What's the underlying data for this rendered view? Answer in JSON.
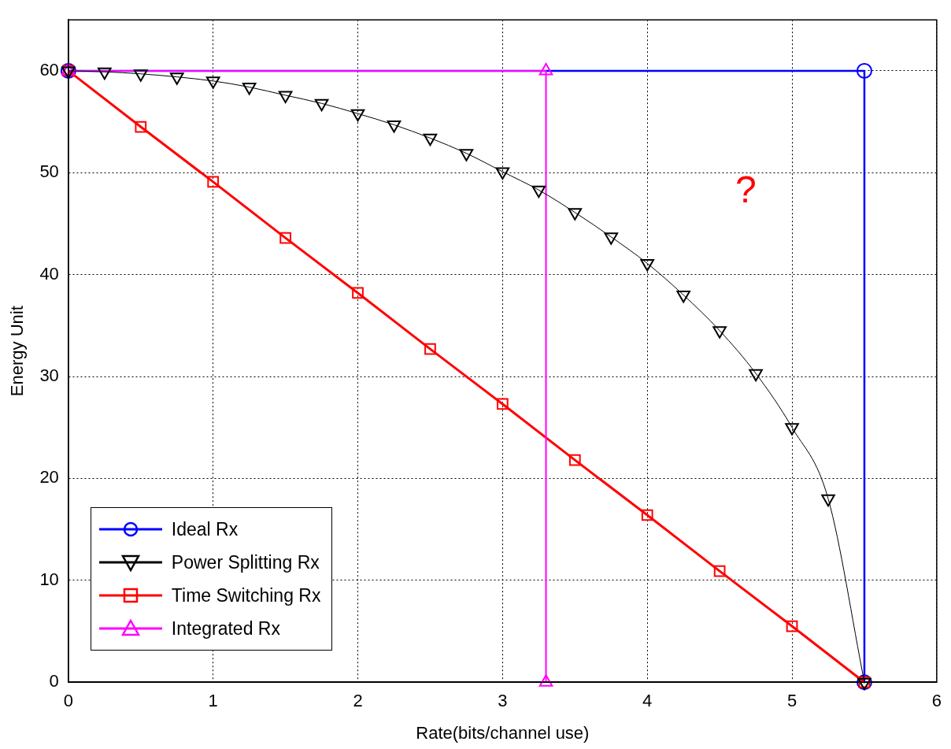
{
  "chart_data": {
    "type": "line",
    "xlabel": "Rate(bits/channel use)",
    "ylabel": "Energy Unit",
    "xlim": [
      0,
      6
    ],
    "xticks": [
      0,
      1,
      2,
      3,
      4,
      5,
      6
    ],
    "ylim": [
      0,
      65
    ],
    "yticks": [
      0,
      10,
      20,
      30,
      40,
      50,
      60
    ],
    "grid": true,
    "legend": "bottom left",
    "line_style": "solid",
    "annotations": [
      "?"
    ],
    "series": [
      {
        "name": "Ideal Rx",
        "color": "#0000ff",
        "marker": "circle",
        "x": [
          0,
          5.5,
          5.5
        ],
        "values": [
          60,
          60,
          0
        ]
      },
      {
        "name": "Power Splitting Rx",
        "color": "#000000",
        "marker": "triangle-down",
        "x": [
          0,
          0.25,
          0.5,
          0.75,
          1,
          1.25,
          1.5,
          1.75,
          2,
          2.25,
          2.5,
          2.75,
          3,
          3.25,
          3.5,
          3.75,
          4,
          4.25,
          4.5,
          4.75,
          5,
          5.25,
          5.5
        ],
        "values": [
          60,
          59.9,
          59.7,
          59.4,
          59,
          58.4,
          57.6,
          56.8,
          55.8,
          54.7,
          53.4,
          51.9,
          50.1,
          48.3,
          46.1,
          43.7,
          41.1,
          38,
          34.5,
          30.3,
          25,
          18,
          0
        ]
      },
      {
        "name": "Time Switching Rx",
        "color": "#ff0000",
        "marker": "square",
        "x": [
          0,
          0.5,
          1,
          1.5,
          2,
          2.5,
          3,
          3.5,
          4,
          4.5,
          5,
          5.5
        ],
        "values": [
          60,
          54.5,
          49.1,
          43.6,
          38.2,
          32.7,
          27.3,
          21.8,
          16.4,
          10.9,
          5.5,
          0
        ]
      },
      {
        "name": "Integrated Rx",
        "color": "#ff00ff",
        "marker": "triangle",
        "x": [
          0,
          3.3,
          3.3
        ],
        "values": [
          60,
          60,
          0
        ]
      }
    ]
  }
}
